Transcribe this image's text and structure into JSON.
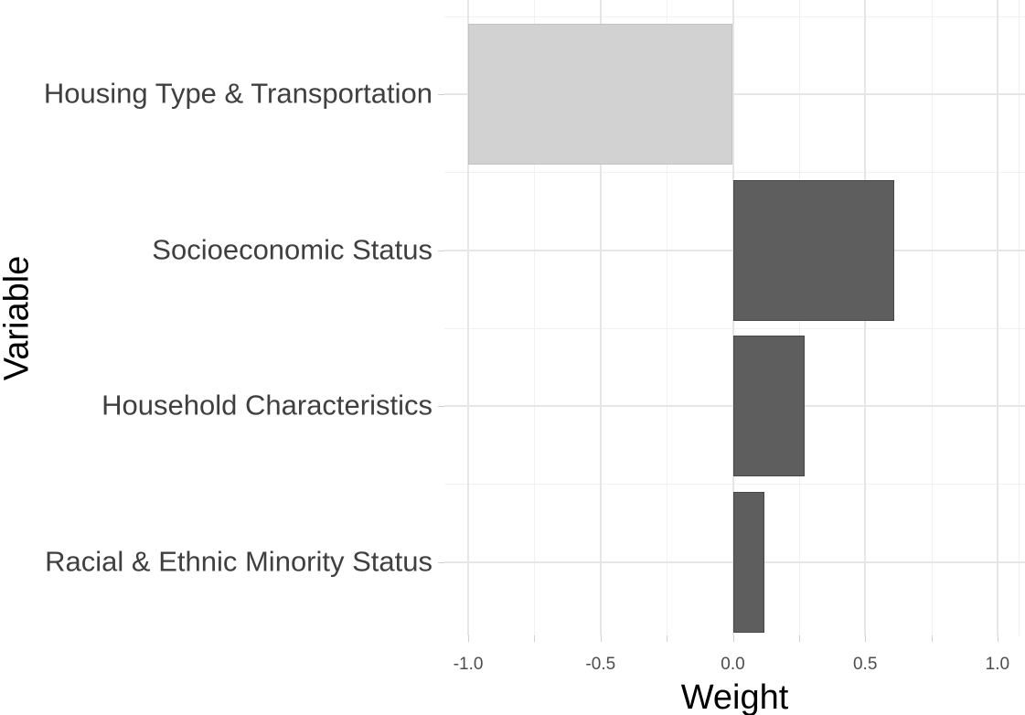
{
  "chart_data": {
    "type": "bar",
    "orientation": "horizontal",
    "title": "",
    "xlabel": "Weight",
    "ylabel": "Variable",
    "categories": [
      "Housing Type & Transportation",
      "Socioeconomic Status",
      "Household Characteristics",
      "Racial & Ethnic Minority Status"
    ],
    "values": [
      -1.0,
      0.61,
      0.27,
      0.12
    ],
    "bar_fill_colors": [
      "#d2d2d2",
      "#5e5e5e",
      "#5e5e5e",
      "#5e5e5e"
    ],
    "bar_border_colors": [
      "#c2c2c2",
      "#474747",
      "#474747",
      "#474747"
    ],
    "x_tick_values": [
      -1.0,
      -0.5,
      0.0,
      0.5,
      1.0
    ],
    "x_tick_labels": [
      "-1.0",
      "-0.5",
      "0.0",
      "0.5",
      "1.0"
    ],
    "x_minor_grid_values": [
      -0.75,
      -0.25,
      0.25,
      0.75
    ],
    "xlim": [
      -1.09,
      1.1
    ],
    "grid": true,
    "legend": "none"
  },
  "colors": {
    "background": "#ffffff",
    "grid_major": "#e6e6e6",
    "grid_minor": "#f1f1f1",
    "tick_mark": "#cfcfcf",
    "axis_title_text": "#000000",
    "axis_tick_text": "#4d4d4d",
    "category_text": "#3f3f3f"
  }
}
